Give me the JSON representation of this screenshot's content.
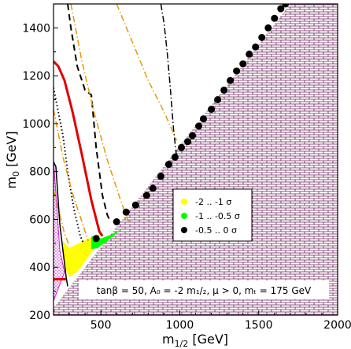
{
  "chart_data": {
    "type": "scatter",
    "xlabel_main": "m",
    "xlabel_sub": "1/2",
    "xlabel_unit": " [GeV]",
    "ylabel_main": "m",
    "ylabel_sub": "0",
    "ylabel_unit": " [GeV]",
    "xlim": [
      200,
      2000
    ],
    "ylim": [
      200,
      1500
    ],
    "xticks": [
      500,
      1000,
      1500,
      2000
    ],
    "yticks": [
      200,
      400,
      600,
      800,
      1000,
      1200,
      1400
    ],
    "xtick_labels": [
      "500",
      "1000",
      "1500",
      "2000"
    ],
    "ytick_labels": [
      "200",
      "400",
      "600",
      "800",
      "1000",
      "1200",
      "1400"
    ],
    "annotation": "tanβ = 50, A₀ = -2 m₁/₂, μ > 0, mₜ = 175 GeV",
    "legend_position": "center-right",
    "legend": [
      {
        "label": "-2 .. -1 σ",
        "color": "#ffff00"
      },
      {
        "label": "-1 .. -0.5 σ",
        "color": "#00ff00"
      },
      {
        "label": "-0.5 .. 0 σ",
        "color": "#000000"
      }
    ],
    "excluded_region": [
      [
        200,
        230
      ],
      [
        1700,
        1500
      ],
      [
        2000,
        1500
      ],
      [
        2000,
        200
      ],
      [
        200,
        200
      ]
    ],
    "magenta_region": [
      [
        200,
        850
      ],
      [
        240,
        470
      ],
      [
        270,
        380
      ],
      [
        200,
        260
      ]
    ],
    "yellow_region": [
      [
        260,
        510
      ],
      [
        300,
        480
      ],
      [
        420,
        520
      ],
      [
        500,
        540
      ],
      [
        450,
        470
      ],
      [
        350,
        380
      ],
      [
        300,
        360
      ],
      [
        270,
        400
      ]
    ],
    "green_region": [
      [
        440,
        530
      ],
      [
        500,
        520
      ],
      [
        560,
        535
      ],
      [
        620,
        555
      ],
      [
        650,
        570
      ],
      [
        560,
        520
      ],
      [
        480,
        480
      ],
      [
        440,
        475
      ]
    ],
    "black_points": [
      [
        470,
        520
      ],
      [
        600,
        590
      ],
      [
        660,
        630
      ],
      [
        720,
        660
      ],
      [
        790,
        700
      ],
      [
        830,
        730
      ],
      [
        880,
        780
      ],
      [
        930,
        830
      ],
      [
        970,
        860
      ],
      [
        1010,
        900
      ],
      [
        1050,
        925
      ],
      [
        1080,
        950
      ],
      [
        1120,
        990
      ],
      [
        1150,
        1020
      ],
      [
        1200,
        1060
      ],
      [
        1240,
        1100
      ],
      [
        1280,
        1140
      ],
      [
        1320,
        1180
      ],
      [
        1360,
        1220
      ],
      [
        1400,
        1250
      ],
      [
        1440,
        1290
      ],
      [
        1480,
        1320
      ],
      [
        1520,
        1360
      ],
      [
        1560,
        1400
      ],
      [
        1600,
        1440
      ],
      [
        1640,
        1480
      ],
      [
        1670,
        1500
      ]
    ],
    "curves": [
      {
        "color": "#e00000",
        "style": "solid",
        "width": 3,
        "points": [
          [
            200,
            1260
          ],
          [
            230,
            1240
          ],
          [
            270,
            1180
          ],
          [
            320,
            1050
          ],
          [
            380,
            870
          ],
          [
            440,
            680
          ],
          [
            490,
            550
          ],
          [
            510,
            530
          ]
        ]
      },
      {
        "color": "#e00000",
        "style": "solid",
        "width": 3,
        "points": [
          [
            200,
            350
          ],
          [
            240,
            350
          ],
          [
            280,
            350
          ]
        ]
      },
      {
        "color": "#000000",
        "style": "dashed",
        "width": 2,
        "points": [
          [
            290,
            1500
          ],
          [
            310,
            1400
          ],
          [
            350,
            1240
          ],
          [
            400,
            1140
          ],
          [
            440,
            1120
          ],
          [
            470,
            900
          ],
          [
            510,
            700
          ],
          [
            540,
            620
          ],
          [
            560,
            590
          ]
        ]
      },
      {
        "color": "#000000",
        "style": "dotted",
        "width": 2,
        "points": [
          [
            200,
            1150
          ],
          [
            230,
            1050
          ],
          [
            260,
            950
          ],
          [
            290,
            800
          ],
          [
            330,
            640
          ],
          [
            370,
            530
          ],
          [
            390,
            500
          ]
        ]
      },
      {
        "color": "#000000",
        "style": "dashdot",
        "width": 1.5,
        "points": [
          [
            880,
            1500
          ],
          [
            900,
            1420
          ],
          [
            920,
            1300
          ],
          [
            940,
            1150
          ],
          [
            960,
            980
          ],
          [
            980,
            860
          ]
        ]
      },
      {
        "color": "#e69900",
        "style": "dashdot",
        "width": 1.5,
        "points": [
          [
            310,
            1500
          ],
          [
            380,
            1260
          ],
          [
            460,
            1040
          ],
          [
            540,
            850
          ],
          [
            620,
            690
          ],
          [
            680,
            580
          ]
        ]
      },
      {
        "color": "#e69900",
        "style": "dashdot",
        "width": 1.5,
        "points": [
          [
            200,
            1060
          ],
          [
            260,
            860
          ],
          [
            320,
            710
          ],
          [
            380,
            590
          ],
          [
            420,
            510
          ]
        ]
      },
      {
        "color": "#e69900",
        "style": "dashdot",
        "width": 1.5,
        "points": [
          [
            600,
            1500
          ],
          [
            700,
            1340
          ],
          [
            800,
            1180
          ],
          [
            900,
            1050
          ],
          [
            980,
            930
          ]
        ]
      },
      {
        "color": "#e69900",
        "style": "dashdot",
        "width": 1.5,
        "points": [
          [
            200,
            720
          ],
          [
            240,
            620
          ],
          [
            270,
            540
          ],
          [
            300,
            490
          ]
        ]
      },
      {
        "color": "#000000",
        "style": "solid",
        "width": 1.5,
        "points": [
          [
            200,
            840
          ],
          [
            215,
            820
          ],
          [
            240,
            580
          ],
          [
            260,
            470
          ],
          [
            280,
            360
          ],
          [
            290,
            320
          ]
        ]
      }
    ]
  }
}
